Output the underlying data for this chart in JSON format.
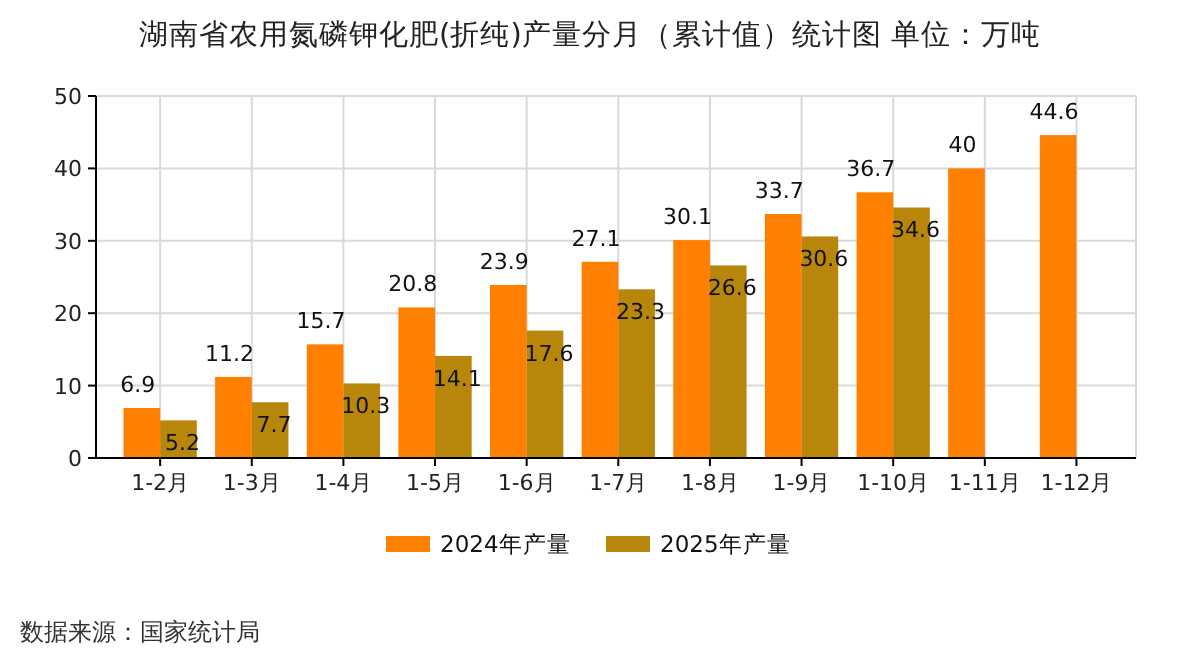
{
  "chart_data": {
    "type": "bar",
    "title": "湖南省农用氮磷钾化肥(折纯)产量分月（累计值）统计图 单位：万吨",
    "categories": [
      "1-2月",
      "1-3月",
      "1-4月",
      "1-5月",
      "1-6月",
      "1-7月",
      "1-8月",
      "1-9月",
      "1-10月",
      "1-11月",
      "1-12月"
    ],
    "series": [
      {
        "name": "2024年产量",
        "color": "#ff8000",
        "values": [
          6.9,
          11.2,
          15.7,
          20.8,
          23.9,
          27.1,
          30.1,
          33.7,
          36.7,
          40,
          44.6
        ]
      },
      {
        "name": "2025年产量",
        "color": "#b8860b",
        "values": [
          5.2,
          7.7,
          10.3,
          14.1,
          17.6,
          23.3,
          26.6,
          30.6,
          34.6,
          null,
          null
        ]
      }
    ],
    "ylim": [
      0,
      50
    ],
    "yticks": [
      0,
      10,
      20,
      30,
      40,
      50
    ],
    "grid": true,
    "legend": "bottom",
    "data_labels": true,
    "annotations": [
      "数据来源：国家统计局"
    ]
  }
}
